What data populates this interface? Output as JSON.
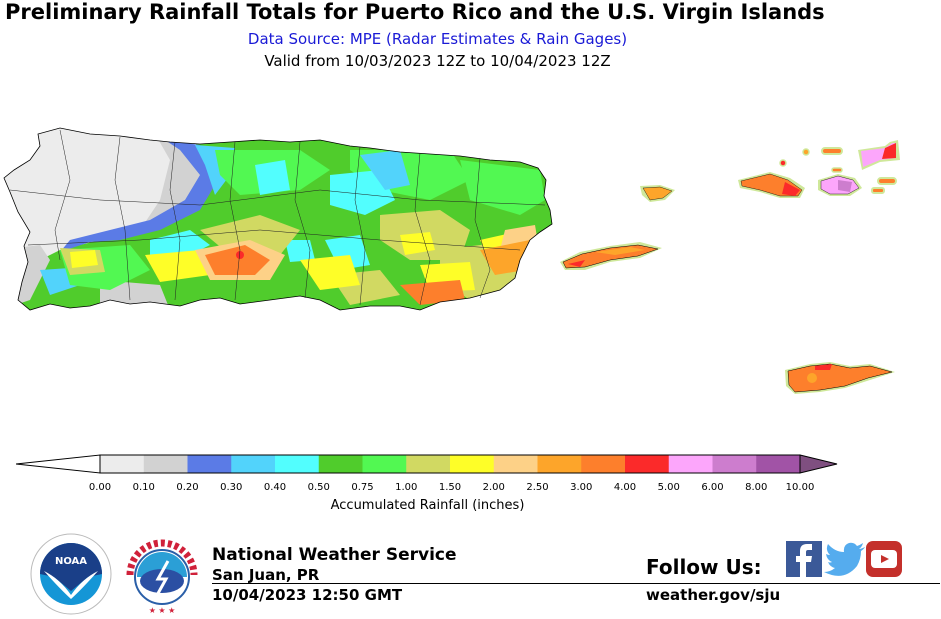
{
  "header": {
    "title": "Preliminary Rainfall Totals for Puerto Rico and the U.S. Virgin Islands",
    "subtitle": "Data Source: MPE (Radar Estimates & Rain Gages)",
    "valid_period": "Valid from 10/03/2023 12Z to 10/04/2023 12Z"
  },
  "map": {
    "regions": [
      "Puerto Rico",
      "St. Thomas",
      "St. John",
      "Tortola",
      "Vieques",
      "Culebra",
      "St. Croix"
    ],
    "colors": {
      "outline": "#000000",
      "coast_halo": "#cfe89a"
    }
  },
  "colorbar": {
    "label": "Accumulated Rainfall (inches)",
    "ticks": [
      "0.00",
      "0.10",
      "0.20",
      "0.30",
      "0.40",
      "0.50",
      "0.75",
      "1.00",
      "1.50",
      "2.00",
      "2.50",
      "3.00",
      "4.00",
      "5.00",
      "6.00",
      "8.00",
      "10.00"
    ],
    "colors": [
      "#ececec",
      "#d2d2d2",
      "#5b7be6",
      "#52d3fb",
      "#52fefe",
      "#50cc2c",
      "#52f852",
      "#d1d962",
      "#fefe28",
      "#fdd187",
      "#fda52a",
      "#fd7f2c",
      "#fb2a2a",
      "#fca6fb",
      "#cd7dce",
      "#a153a6"
    ],
    "under_color": "#ffffff",
    "over_color": "#7f4f80"
  },
  "footer": {
    "agency": "National Weather Service",
    "office": "San Juan, PR",
    "issued": "10/04/2023 12:50 GMT",
    "follow_label": "Follow Us:",
    "website": "weather.gov/sju",
    "noaa_logo_text": "NOAA",
    "nws_logo_text": "NATIONAL WEATHER SERVICE",
    "social": [
      "facebook-icon",
      "twitter-icon",
      "youtube-icon"
    ]
  }
}
